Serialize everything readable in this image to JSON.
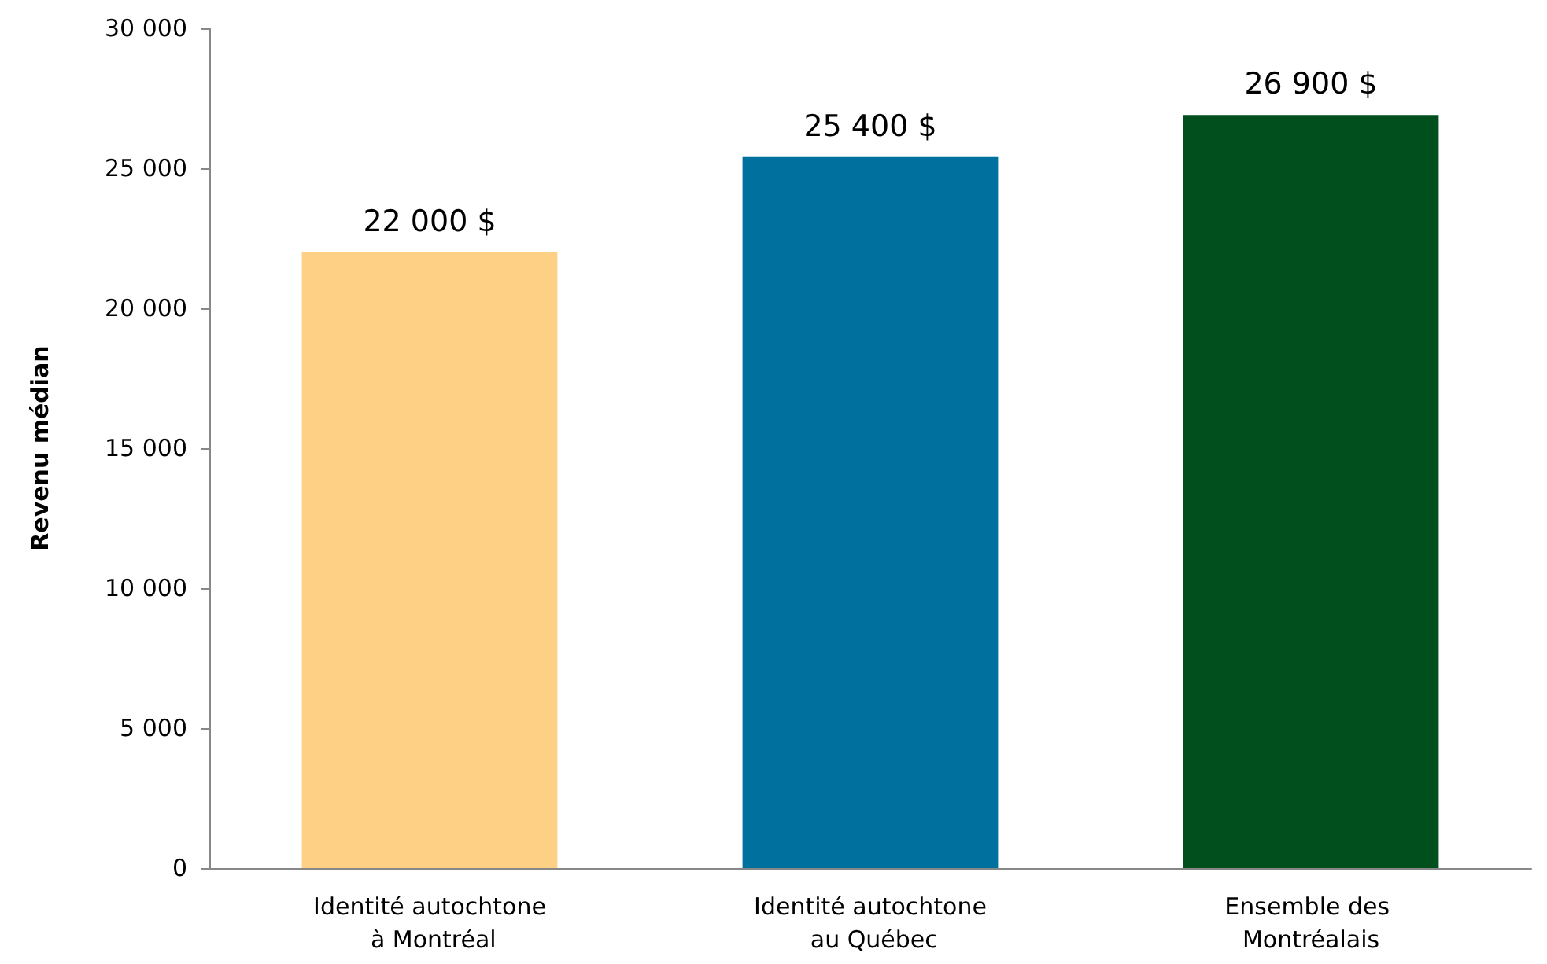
{
  "chart_data": {
    "type": "bar",
    "ylabel": "Revenu médian",
    "categories": [
      "Identité autochtone à Montréal",
      "Identité autochtone au Québec",
      "Ensemble des Montréalais"
    ],
    "values": [
      22000,
      25400,
      26900
    ],
    "colors": [
      "#fdd085",
      "#00709e",
      "#004f1d"
    ],
    "value_labels": [
      "22 000 $",
      "25 400 $",
      "26 900 $"
    ],
    "ylim": [
      0,
      30000
    ],
    "yticks": [
      0,
      {
        "value": 5000,
        "label": "5 000"
      },
      {
        "value": 10000,
        "label": "10 000"
      },
      {
        "value": 15000,
        "label": "15 000"
      },
      {
        "value": 20000,
        "label": "20 000"
      },
      {
        "value": 25000,
        "label": "25 000"
      },
      {
        "value": 30000,
        "label": "30 000"
      }
    ],
    "grid": false
  }
}
